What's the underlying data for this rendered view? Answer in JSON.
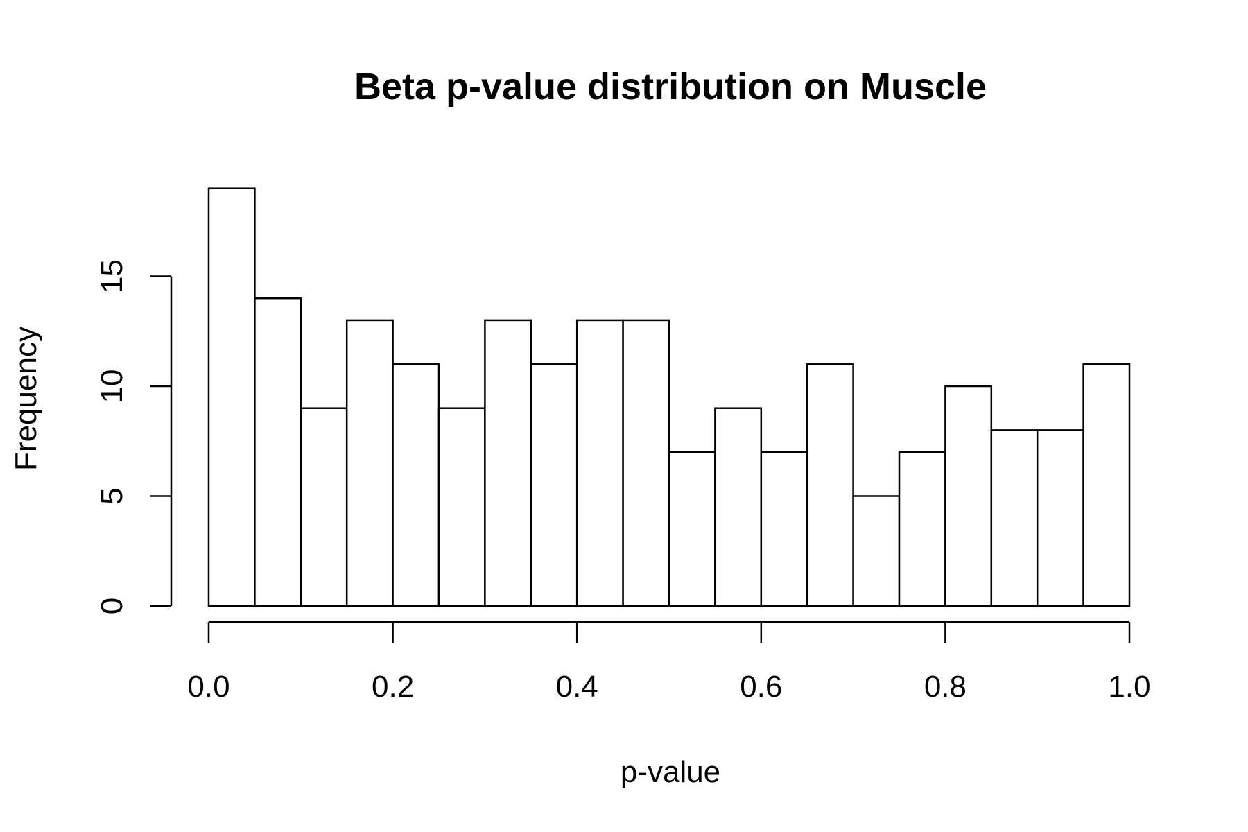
{
  "chart_data": {
    "type": "bar",
    "subtype": "histogram",
    "title": "Beta p-value distribution on Muscle",
    "xlabel": "p-value",
    "ylabel": "Frequency",
    "bin_edges": [
      0.0,
      0.05,
      0.1,
      0.15,
      0.2,
      0.25,
      0.3,
      0.35,
      0.4,
      0.45,
      0.5,
      0.55,
      0.6,
      0.65,
      0.7,
      0.75,
      0.8,
      0.85,
      0.9,
      0.95,
      1.0
    ],
    "values": [
      19,
      14,
      9,
      13,
      11,
      9,
      13,
      11,
      13,
      13,
      7,
      9,
      7,
      11,
      5,
      7,
      10,
      8,
      8,
      11
    ],
    "xlim": [
      0.0,
      1.0
    ],
    "ylim": [
      0,
      19
    ],
    "x_ticks": [
      0.0,
      0.2,
      0.4,
      0.6,
      0.8,
      1.0
    ],
    "x_tick_labels": [
      "0.0",
      "0.2",
      "0.4",
      "0.6",
      "0.8",
      "1.0"
    ],
    "y_ticks": [
      0,
      5,
      10,
      15
    ],
    "y_tick_labels": [
      "0",
      "5",
      "10",
      "15"
    ],
    "grid": false,
    "legend": "none",
    "bar_fill": "#ffffff",
    "bar_stroke": "#000000"
  }
}
